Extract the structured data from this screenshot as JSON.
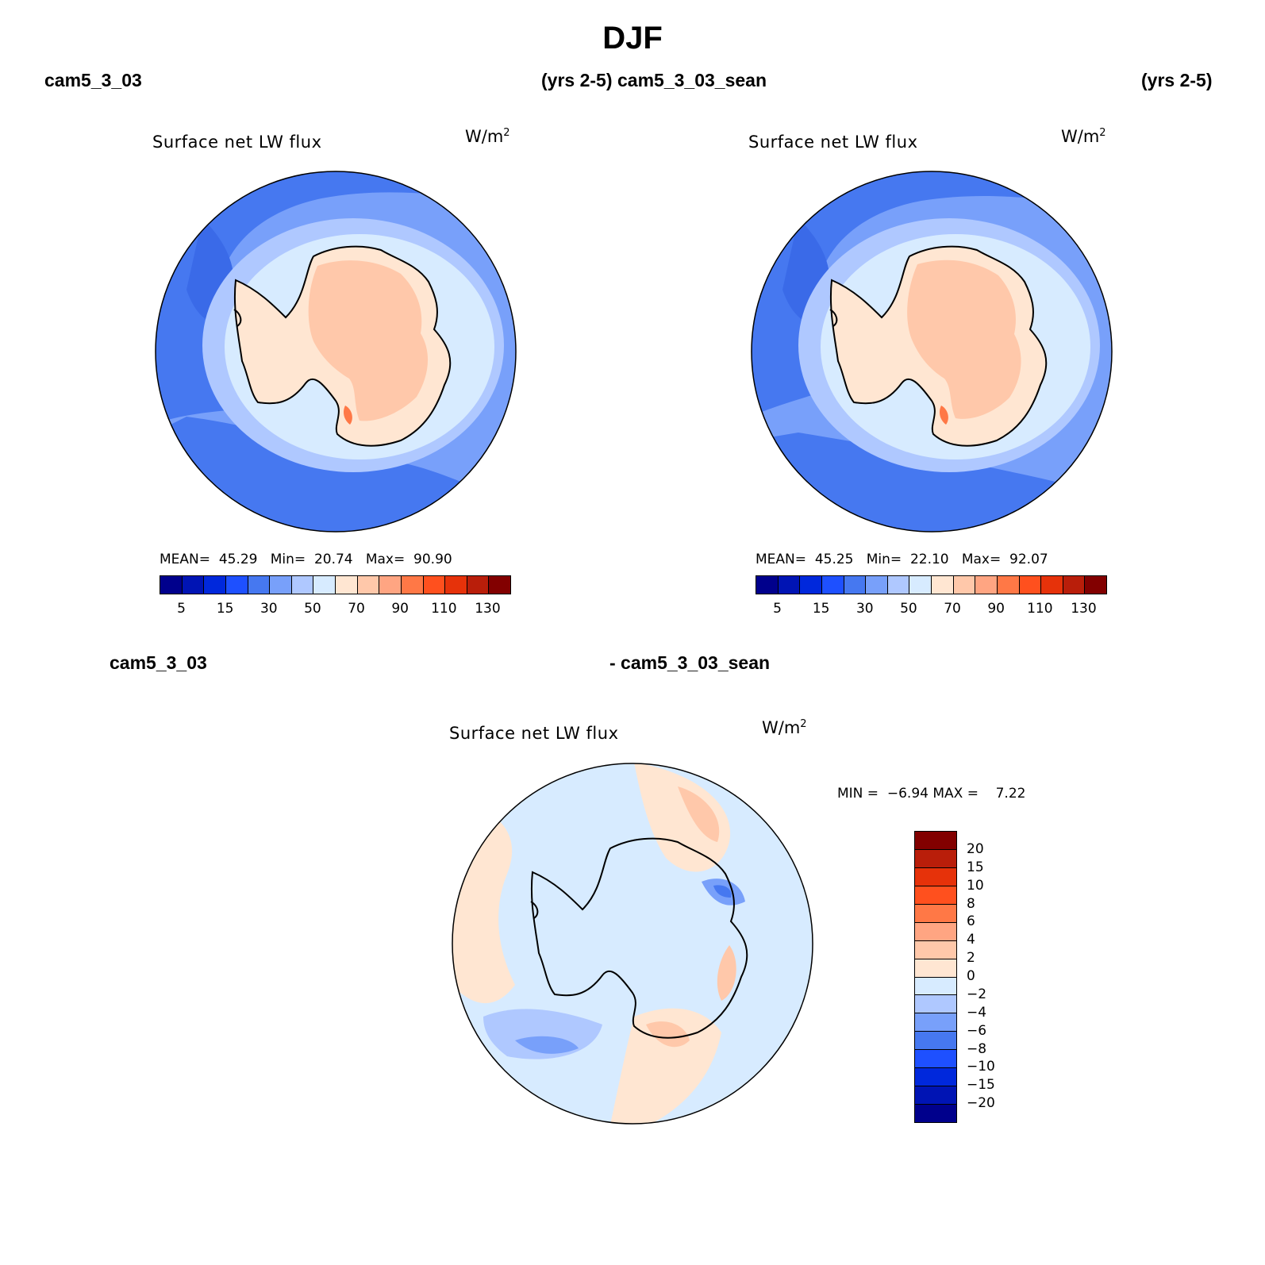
{
  "figure": {
    "title": "DJF",
    "panel1": {
      "case": "cam5_3_03",
      "years": "(yrs 2-5)"
    },
    "panel2": {
      "case": "cam5_3_03_sean",
      "years": "(yrs 2-5)"
    },
    "diff": {
      "case_a": "cam5_3_03",
      "case_b": "- cam5_3_03_sean"
    }
  },
  "chart_data": [
    {
      "type": "heatmap",
      "projection": "south-polar-stereographic",
      "title": "Surface net LW flux",
      "units_base": "W/m",
      "units_exp": "2",
      "stats": {
        "mean_label": "MEAN=",
        "mean": "45.29",
        "min_label": "Min=",
        "min": "20.74",
        "max_label": "Max=",
        "max": "90.90"
      },
      "colorbar": {
        "colors": [
          "#00008c",
          "#0014b4",
          "#0028dc",
          "#1e50ff",
          "#4678f0",
          "#78a0fa",
          "#afc8ff",
          "#d7ebff",
          "#ffe6d2",
          "#ffc8aa",
          "#ffa582",
          "#ff7846",
          "#ff501e",
          "#e6320a",
          "#b91e0a",
          "#820000"
        ],
        "tick_labels": [
          "5",
          "15",
          "30",
          "50",
          "70",
          "90",
          "110",
          "130"
        ]
      }
    },
    {
      "type": "heatmap",
      "projection": "south-polar-stereographic",
      "title": "Surface net LW flux",
      "units_base": "W/m",
      "units_exp": "2",
      "stats": {
        "mean_label": "MEAN=",
        "mean": "45.25",
        "min_label": "Min=",
        "min": "22.10",
        "max_label": "Max=",
        "max": "92.07"
      },
      "colorbar": {
        "colors": [
          "#00008c",
          "#0014b4",
          "#0028dc",
          "#1e50ff",
          "#4678f0",
          "#78a0fa",
          "#afc8ff",
          "#d7ebff",
          "#ffe6d2",
          "#ffc8aa",
          "#ffa582",
          "#ff7846",
          "#ff501e",
          "#e6320a",
          "#b91e0a",
          "#820000"
        ],
        "tick_labels": [
          "5",
          "15",
          "30",
          "50",
          "70",
          "90",
          "110",
          "130"
        ]
      }
    },
    {
      "type": "heatmap",
      "projection": "south-polar-stereographic",
      "title": "Surface net LW flux",
      "units_base": "W/m",
      "units_exp": "2",
      "stats": {
        "min_label": "MIN =",
        "min": "−6.94",
        "max_label": "MAX =",
        "max": "7.22"
      },
      "colorbar": {
        "colors": [
          "#820000",
          "#b91e0a",
          "#e6320a",
          "#ff501e",
          "#ff7846",
          "#ffa582",
          "#ffc8aa",
          "#ffe6d2",
          "#d7ebff",
          "#afc8ff",
          "#78a0fa",
          "#4678f0",
          "#1e50ff",
          "#0028dc",
          "#0014b4",
          "#00008c"
        ],
        "tick_labels": [
          "20",
          "15",
          "10",
          "8",
          "6",
          "4",
          "2",
          "0",
          "−2",
          "−4",
          "−6",
          "−8",
          "−10",
          "−15",
          "−20"
        ]
      }
    }
  ]
}
